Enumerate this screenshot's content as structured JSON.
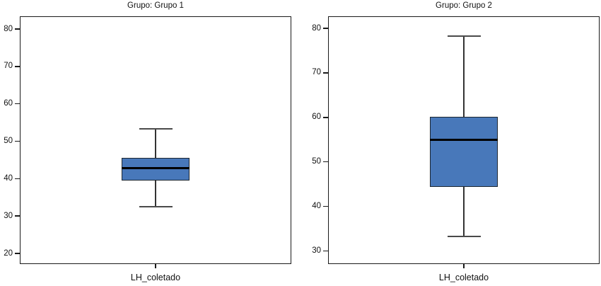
{
  "figure": {
    "background": "#ffffff",
    "grid": false,
    "legend": "none"
  },
  "colors": {
    "box_fill": "#4878ba",
    "box_border": "#1c2630",
    "median": "#000000",
    "whisker_stem": "#333333",
    "whisker_cap": "#4a4a4a",
    "frame": "#1a1a1a",
    "text": "#111111"
  },
  "chart_data": [
    {
      "type": "boxplot",
      "title": "Grupo: Grupo 1",
      "categories": [
        "LH_coletado"
      ],
      "yticks": [
        20,
        30,
        40,
        50,
        60,
        70,
        80
      ],
      "ylim": [
        17.2,
        83.4
      ],
      "grid": false,
      "series": [
        {
          "name": "LH_coletado",
          "min": 32.5,
          "q1": 39.5,
          "median": 42.8,
          "q3": 45.6,
          "max": 53.3
        }
      ]
    },
    {
      "type": "boxplot",
      "title": "Grupo: Grupo 2",
      "categories": [
        "LH_coletado"
      ],
      "yticks": [
        30,
        40,
        50,
        60,
        70,
        80
      ],
      "ylim": [
        27.1,
        82.7
      ],
      "grid": false,
      "series": [
        {
          "name": "LH_coletado",
          "min": 33.3,
          "q1": 44.4,
          "median": 55,
          "q3": 60.2,
          "max": 78.3
        }
      ]
    }
  ]
}
